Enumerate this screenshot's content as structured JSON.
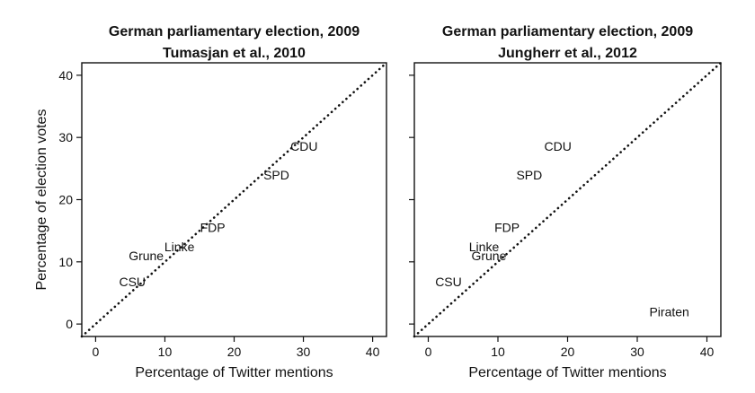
{
  "chart_data": [
    {
      "type": "scatter",
      "title": "German parliamentary election, 2009",
      "subtitle": "Tumasjan et al., 2010",
      "xlabel": "Percentage of Twitter mentions",
      "ylabel": "Percentage of election votes",
      "xlim": [
        -2,
        42
      ],
      "ylim": [
        -2,
        42
      ],
      "xticks": [
        0,
        10,
        20,
        30,
        40
      ],
      "yticks": [
        0,
        10,
        20,
        30,
        40
      ],
      "reference_line": "y = x",
      "points": [
        {
          "label": "CDU",
          "x": 30.1,
          "y": 28.6
        },
        {
          "label": "SPD",
          "x": 26.1,
          "y": 24.0
        },
        {
          "label": "FDP",
          "x": 16.9,
          "y": 15.5
        },
        {
          "label": "Linke",
          "x": 12.1,
          "y": 12.4
        },
        {
          "label": "Grune",
          "x": 7.3,
          "y": 11.0
        },
        {
          "label": "CSU",
          "x": 5.3,
          "y": 6.8
        }
      ]
    },
    {
      "type": "scatter",
      "title": "German parliamentary election, 2009",
      "subtitle": "Jungherr et al., 2012",
      "xlabel": "Percentage of Twitter mentions",
      "ylabel": "",
      "xlim": [
        -2,
        42
      ],
      "ylim": [
        -2,
        42
      ],
      "xticks": [
        0,
        10,
        20,
        30,
        40
      ],
      "yticks": [
        0,
        10,
        20,
        30,
        40
      ],
      "reference_line": "y = x",
      "points": [
        {
          "label": "CDU",
          "x": 18.6,
          "y": 28.6
        },
        {
          "label": "SPD",
          "x": 14.5,
          "y": 24.0
        },
        {
          "label": "FDP",
          "x": 11.3,
          "y": 15.5
        },
        {
          "label": "Linke",
          "x": 8.0,
          "y": 12.4
        },
        {
          "label": "Grune",
          "x": 8.7,
          "y": 11.0
        },
        {
          "label": "CSU",
          "x": 2.9,
          "y": 6.8
        },
        {
          "label": "Piraten",
          "x": 34.6,
          "y": 2.0
        }
      ]
    }
  ]
}
